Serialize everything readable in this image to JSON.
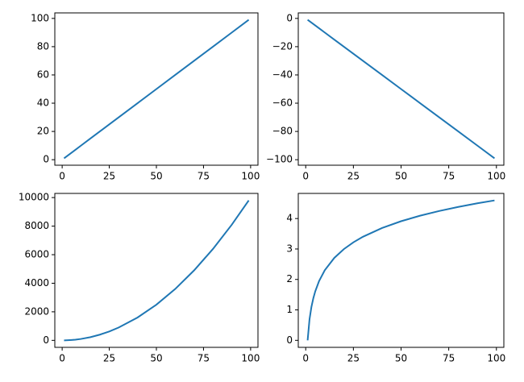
{
  "chart_data": [
    {
      "type": "line",
      "color": "#1f77b4",
      "x": [
        1,
        2,
        3,
        4,
        5,
        7,
        10,
        15,
        20,
        25,
        30,
        40,
        50,
        60,
        70,
        80,
        90,
        99
      ],
      "values": [
        1,
        2,
        3,
        4,
        5,
        7,
        10,
        15,
        20,
        25,
        30,
        40,
        50,
        60,
        70,
        80,
        90,
        99
      ],
      "xlim": [
        -3.9,
        103.9
      ],
      "xticks": [
        0,
        25,
        50,
        75,
        100
      ],
      "ylim": [
        -3.9,
        103.9
      ],
      "yticks": [
        0,
        20,
        40,
        60,
        80,
        100
      ]
    },
    {
      "type": "line",
      "color": "#1f77b4",
      "x": [
        1,
        2,
        3,
        4,
        5,
        7,
        10,
        15,
        20,
        25,
        30,
        40,
        50,
        60,
        70,
        80,
        90,
        99
      ],
      "values": [
        -1,
        -2,
        -3,
        -4,
        -5,
        -7,
        -10,
        -15,
        -20,
        -25,
        -30,
        -40,
        -50,
        -60,
        -70,
        -80,
        -90,
        -99
      ],
      "xlim": [
        -3.9,
        103.9
      ],
      "xticks": [
        0,
        25,
        50,
        75,
        100
      ],
      "ylim": [
        -103.9,
        3.9
      ],
      "yticks": [
        0,
        {
          "value": -20,
          "label": "−20"
        },
        {
          "value": -40,
          "label": "−40"
        },
        {
          "value": -60,
          "label": "−60"
        },
        {
          "value": -80,
          "label": "−80"
        },
        {
          "value": -100,
          "label": "−100"
        }
      ]
    },
    {
      "type": "line",
      "color": "#1f77b4",
      "x": [
        1,
        2,
        3,
        4,
        5,
        7,
        10,
        15,
        20,
        25,
        30,
        40,
        50,
        60,
        70,
        80,
        90,
        99
      ],
      "values": [
        1,
        4,
        9,
        16,
        25,
        49,
        100,
        225,
        400,
        625,
        900,
        1600,
        2500,
        3600,
        4900,
        6400,
        8100,
        9801
      ],
      "xlim": [
        -3.9,
        103.9
      ],
      "xticks": [
        0,
        25,
        50,
        75,
        100
      ],
      "ylim": [
        -489,
        10291
      ],
      "yticks": [
        0,
        2000,
        4000,
        6000,
        8000,
        10000
      ]
    },
    {
      "type": "line",
      "color": "#1f77b4",
      "x": [
        1,
        2,
        3,
        4,
        5,
        7,
        10,
        15,
        20,
        25,
        30,
        40,
        50,
        60,
        70,
        80,
        90,
        99
      ],
      "values": [
        0,
        0.693,
        1.099,
        1.386,
        1.609,
        1.946,
        2.303,
        2.708,
        2.996,
        3.219,
        3.401,
        3.689,
        3.912,
        4.094,
        4.248,
        4.382,
        4.5,
        4.595
      ],
      "xlim": [
        -3.9,
        103.9
      ],
      "xticks": [
        0,
        25,
        50,
        75,
        100
      ],
      "ylim": [
        -0.23,
        4.825
      ],
      "yticks": [
        0,
        1,
        2,
        3,
        4
      ]
    }
  ]
}
